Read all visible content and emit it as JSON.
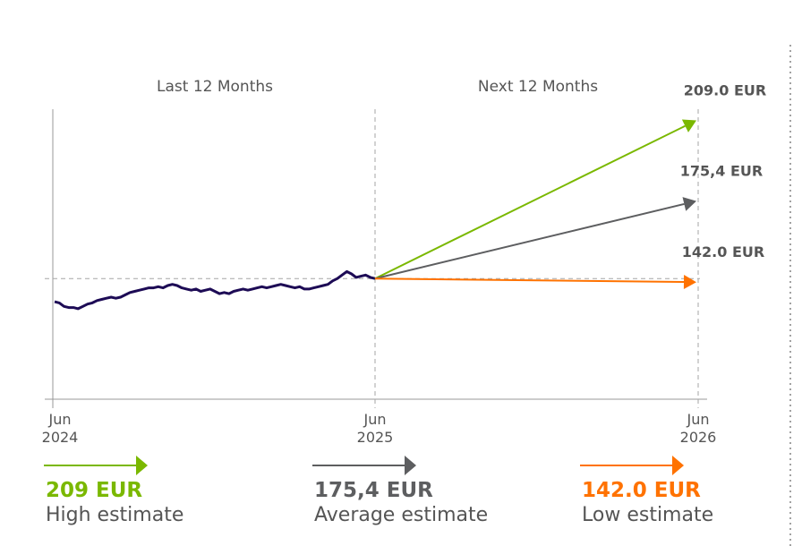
{
  "chart_data": {
    "type": "line",
    "section_labels": [
      "Last 12 Months",
      "Next 12 Months"
    ],
    "x_ticks": [
      {
        "month": "Jun",
        "year": "2024"
      },
      {
        "month": "Jun",
        "year": "2025"
      },
      {
        "month": "Jun",
        "year": "2026"
      }
    ],
    "history": {
      "x_start": "2024-06",
      "x_end": "2025-06",
      "values": [
        132,
        131.5,
        130,
        129.5,
        129.5,
        129,
        130,
        131,
        131.5,
        132.5,
        133,
        133.5,
        134,
        133.5,
        134,
        135,
        136,
        136.5,
        137,
        137.5,
        138,
        138,
        138.5,
        138,
        139,
        139.5,
        139,
        138,
        137.5,
        137,
        137.5,
        136.5,
        137,
        137.5,
        136.5,
        135.5,
        136,
        135.5,
        136.5,
        137,
        137.5,
        137,
        137.5,
        138,
        138.5,
        138,
        138.5,
        139,
        139.5,
        139,
        138.5,
        138,
        138.5,
        137.5,
        137.5,
        138,
        138.5,
        139,
        139.5,
        141,
        142,
        143.5,
        145,
        144,
        142.5,
        143,
        143.5,
        142.5,
        142
      ]
    },
    "current_price": 142,
    "forecasts": [
      {
        "name": "High estimate",
        "value": 209.0,
        "label": "209.0 EUR",
        "legend_value": "209 EUR",
        "color": "#7ab800"
      },
      {
        "name": "Average estimate",
        "value": 175.4,
        "label": "175,4 EUR",
        "legend_value": "175,4 EUR",
        "color": "#5d5e60"
      },
      {
        "name": "Low estimate",
        "value": 142.0,
        "label": "142.0 EUR",
        "legend_value": "142.0 EUR",
        "color": "#ff7200"
      }
    ],
    "colors": {
      "history_line": "#1d0b55",
      "axis": "#999999",
      "grid_dashed": "#a6a6a6",
      "label_text": "#555555"
    },
    "ylim": [
      90,
      215
    ],
    "reference_line": 142
  }
}
